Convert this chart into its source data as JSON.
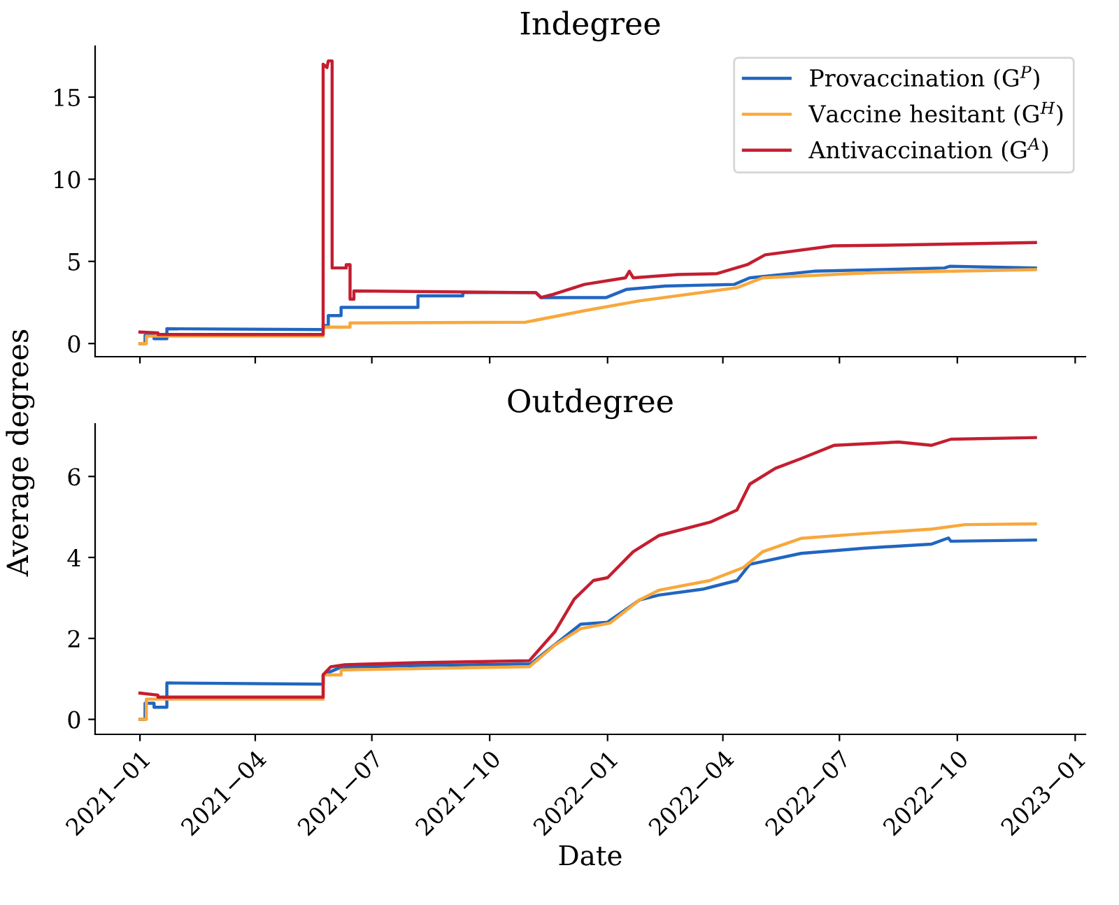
{
  "chart_data": [
    {
      "type": "line",
      "title": "Indegree",
      "xlim": [
        "2020-11-27",
        "2023-01-09"
      ],
      "ylim": [
        -0.8,
        18.1
      ],
      "yticks": [
        0,
        5,
        10,
        15
      ],
      "xticks": [
        {
          "value": "2021-01",
          "label": null
        },
        {
          "value": "2021-04",
          "label": null
        },
        {
          "value": "2021-07",
          "label": null
        },
        {
          "value": "2021-10",
          "label": null
        },
        {
          "value": "2022-01",
          "label": null
        },
        {
          "value": "2022-04",
          "label": null
        },
        {
          "value": "2022-07",
          "label": null
        },
        {
          "value": "2022-10",
          "label": null
        },
        {
          "value": "2023-01",
          "label": null
        }
      ],
      "tick_labels": "y",
      "legend": "top right",
      "grid": false,
      "series": [
        {
          "name": "Provaccination (G$^{P}$)",
          "color": "#2166c0",
          "x": [
            "2021-01-01",
            "2021-01-05",
            "2021-01-05",
            "2021-01-12",
            "2021-01-12",
            "2021-01-22",
            "2021-01-22",
            "2021-05-24",
            "2021-05-24",
            "2021-05-28",
            "2021-05-28",
            "2021-06-07",
            "2021-06-07",
            "2021-08-06",
            "2021-08-06",
            "2021-09-10",
            "2021-09-10",
            "2021-11-06",
            "2021-11-10",
            "2021-12-31",
            "2022-01-16",
            "2022-02-15",
            "2022-04-10",
            "2022-04-22",
            "2022-06-11",
            "2022-09-21",
            "2022-09-25",
            "2022-12-01"
          ],
          "values": [
            0,
            0,
            0.5,
            0.5,
            0.3,
            0.3,
            0.9,
            0.85,
            1.1,
            1.1,
            1.7,
            1.7,
            2.2,
            2.2,
            2.9,
            2.9,
            3.1,
            3.1,
            2.8,
            2.8,
            3.3,
            3.5,
            3.6,
            4.0,
            4.4,
            4.6,
            4.7,
            4.6
          ]
        },
        {
          "name": "Vaccine hesitant (G$^{H}$)",
          "color": "#f8a83c",
          "x": [
            "2021-01-01",
            "2021-01-06",
            "2021-01-06",
            "2021-05-24",
            "2021-05-24",
            "2021-06-14",
            "2021-06-14",
            "2021-10-29",
            "2021-12-14",
            "2022-01-26",
            "2022-04-12",
            "2022-05-02",
            "2022-07-22",
            "2022-12-01"
          ],
          "values": [
            0,
            0,
            0.45,
            0.45,
            1.0,
            1.0,
            1.25,
            1.3,
            2.0,
            2.6,
            3.4,
            4.0,
            4.3,
            4.5
          ]
        },
        {
          "name": "Antivaccination (G$^{A}$)",
          "color": "#c41e30",
          "x": [
            "2021-01-01",
            "2021-01-15",
            "2021-01-15",
            "2021-05-24",
            "2021-05-24",
            "2021-05-27",
            "2021-05-28",
            "2021-05-31",
            "2021-05-31",
            "2021-06-11",
            "2021-06-11",
            "2021-06-14",
            "2021-06-14",
            "2021-06-17",
            "2021-06-17",
            "2021-11-06",
            "2021-11-10",
            "2021-11-20",
            "2021-12-14",
            "2022-01-15",
            "2022-01-18",
            "2022-01-21",
            "2022-02-25",
            "2022-03-27",
            "2022-04-20",
            "2022-05-04",
            "2022-06-26",
            "2022-08-17",
            "2022-12-01"
          ],
          "values": [
            0.7,
            0.65,
            0.55,
            0.55,
            17.0,
            16.8,
            17.2,
            17.2,
            4.6,
            4.6,
            4.8,
            4.8,
            2.7,
            2.7,
            3.2,
            3.1,
            2.8,
            3.0,
            3.6,
            4.0,
            4.4,
            4.0,
            4.2,
            4.25,
            4.8,
            5.4,
            5.95,
            6.0,
            6.15
          ]
        }
      ]
    },
    {
      "type": "line",
      "title": "Outdegree",
      "xlabel": "Date",
      "ylabel": "Average degrees",
      "xlim": [
        "2020-11-27",
        "2023-01-09"
      ],
      "ylim": [
        -0.37,
        7.3
      ],
      "yticks": [
        0,
        2,
        4,
        6
      ],
      "xticks": [
        {
          "value": "2021-01",
          "label": "2021−01"
        },
        {
          "value": "2021-04",
          "label": "2021−04"
        },
        {
          "value": "2021-07",
          "label": "2021−07"
        },
        {
          "value": "2021-10",
          "label": "2021−10"
        },
        {
          "value": "2022-01",
          "label": "2022−01"
        },
        {
          "value": "2022-04",
          "label": "2022−04"
        },
        {
          "value": "2022-07",
          "label": "2022−07"
        },
        {
          "value": "2022-10",
          "label": "2022−10"
        },
        {
          "value": "2023-01",
          "label": "2023−01"
        }
      ],
      "grid": false,
      "series": [
        {
          "color": "#2166c0",
          "x": [
            "2021-01-01",
            "2021-01-05",
            "2021-01-05",
            "2021-01-12",
            "2021-01-12",
            "2021-01-22",
            "2021-01-22",
            "2021-05-24",
            "2021-05-24",
            "2021-06-07",
            "2021-08-06",
            "2021-11-02",
            "2021-11-11",
            "2021-12-11",
            "2022-01-01",
            "2022-01-26",
            "2022-02-10",
            "2022-03-17",
            "2022-04-12",
            "2022-04-22",
            "2022-06-01",
            "2022-07-21",
            "2022-09-11",
            "2022-09-24",
            "2022-09-26",
            "2022-12-01"
          ],
          "values": [
            0,
            0,
            0.4,
            0.4,
            0.3,
            0.3,
            0.9,
            0.87,
            1.1,
            1.29,
            1.33,
            1.37,
            1.6,
            2.35,
            2.4,
            2.95,
            3.07,
            3.22,
            3.43,
            3.83,
            4.1,
            4.23,
            4.33,
            4.48,
            4.4,
            4.43
          ]
        },
        {
          "color": "#f8a83c",
          "x": [
            "2021-01-01",
            "2021-01-06",
            "2021-01-06",
            "2021-05-24",
            "2021-05-24",
            "2021-06-07",
            "2021-06-07",
            "2021-11-01",
            "2021-11-21",
            "2021-12-11",
            "2022-01-03",
            "2022-01-26",
            "2022-02-10",
            "2022-03-22",
            "2022-04-17",
            "2022-05-02",
            "2022-06-01",
            "2022-07-21",
            "2022-09-11",
            "2022-10-07",
            "2022-12-01"
          ],
          "values": [
            0,
            0,
            0.5,
            0.5,
            1.1,
            1.1,
            1.22,
            1.3,
            1.84,
            2.24,
            2.38,
            2.95,
            3.19,
            3.43,
            3.75,
            4.14,
            4.47,
            4.59,
            4.7,
            4.81,
            4.83
          ]
        },
        {
          "color": "#c41e30",
          "x": [
            "2021-01-01",
            "2021-01-15",
            "2021-01-15",
            "2021-05-24",
            "2021-05-24",
            "2021-05-30",
            "2021-06-10",
            "2021-08-06",
            "2021-11-01",
            "2021-11-21",
            "2021-12-06",
            "2021-12-21",
            "2022-01-01",
            "2022-01-21",
            "2022-02-10",
            "2022-03-22",
            "2022-04-12",
            "2022-04-22",
            "2022-05-12",
            "2022-06-01",
            "2022-06-27",
            "2022-08-16",
            "2022-09-11",
            "2022-09-26",
            "2022-12-01"
          ],
          "values": [
            0.65,
            0.6,
            0.55,
            0.55,
            1.1,
            1.3,
            1.35,
            1.4,
            1.45,
            2.17,
            2.97,
            3.43,
            3.5,
            4.14,
            4.54,
            4.87,
            5.17,
            5.81,
            6.2,
            6.44,
            6.77,
            6.85,
            6.77,
            6.92,
            6.96
          ]
        }
      ]
    }
  ]
}
